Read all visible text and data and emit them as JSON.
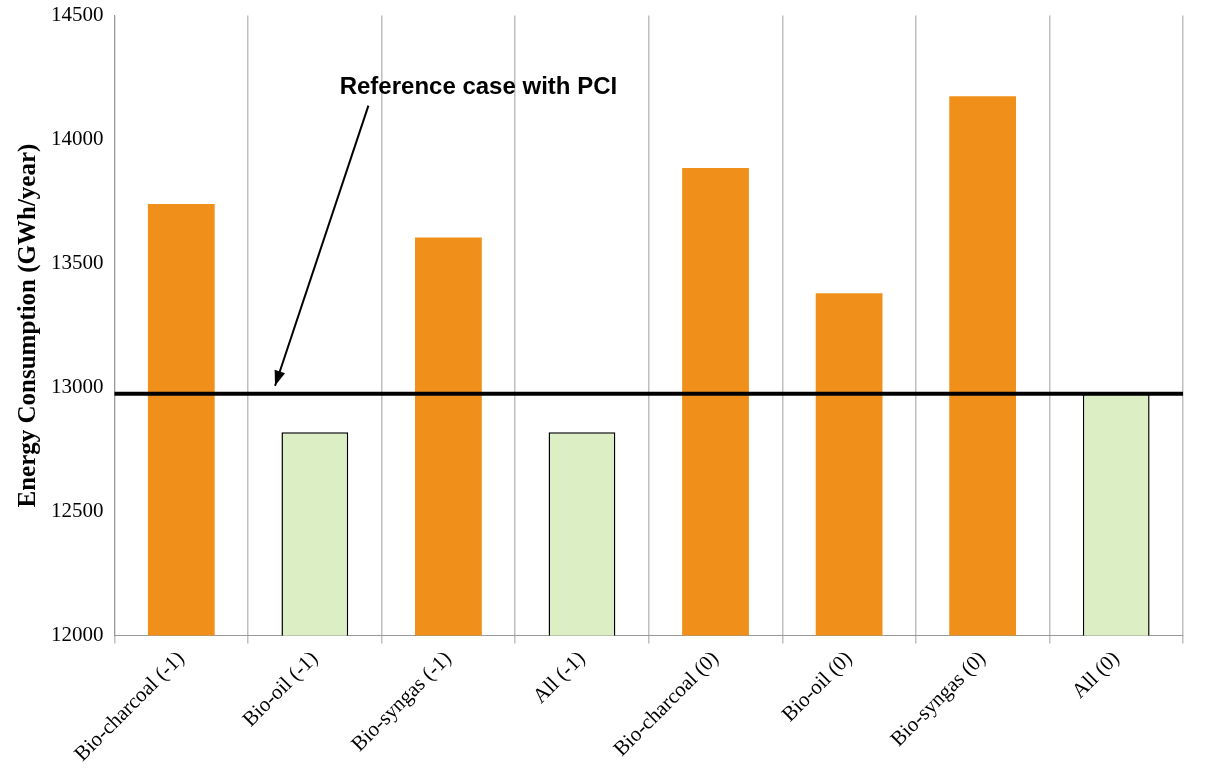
{
  "chart_data": {
    "type": "bar",
    "ylabel": "Energy Consumption (GWh/year)",
    "categories": [
      "Bio-charcoal (-1)",
      "Bio-oil (-1)",
      "Bio-syngas (-1)",
      "All (-1)",
      "Bio-charcoal (0)",
      "Bio-oil (0)",
      "Bio-syngas (0)",
      "All (0)"
    ],
    "values": [
      13740,
      12820,
      13605,
      12820,
      13885,
      13380,
      14175,
      12975
    ],
    "colors": [
      "#f0901a",
      "#dcefc4",
      "#f0901a",
      "#dcefc4",
      "#f0901a",
      "#f0901a",
      "#f0901a",
      "#dcefc4"
    ],
    "ylim": [
      12000,
      14500
    ],
    "yticks": [
      12000,
      12500,
      13000,
      13500,
      14000,
      14500
    ],
    "grid": "x",
    "legend": false,
    "ref_lines": [
      {
        "axis": "y",
        "value": 12975,
        "label": "Reference case with PCI",
        "color": "#000000"
      }
    ]
  }
}
